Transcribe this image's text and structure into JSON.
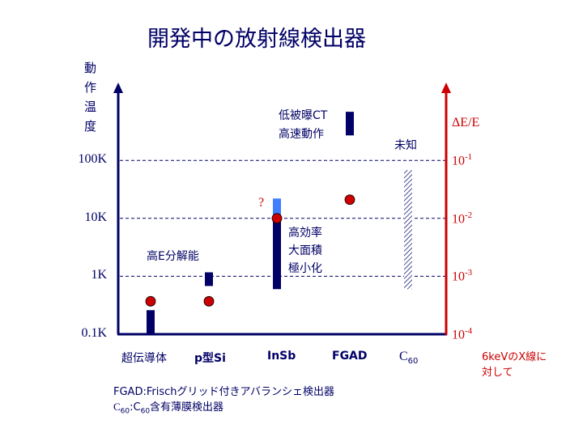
{
  "title": "開発中の放射線検出器",
  "left_axis_label": "動\n作\n温\n度",
  "right_axis_label": "ΔE/E",
  "right_axis_note": [
    "6keVのX線に",
    "対して"
  ],
  "annotations": {
    "fgad_note": [
      "低被曝CT",
      "高速動作"
    ],
    "insb_note": [
      "高効率",
      "大面積",
      "極小化"
    ],
    "high_res": "高E分解能",
    "unknown": "未知",
    "question": "?"
  },
  "footnotes": {
    "fgad": "FGAD:Frischグリッド付きアバランシェ検出器",
    "c60_prefix": "C",
    "c60_sub": "60",
    "c60_mid": ":C",
    "c60_sub2": "60",
    "c60_rest": "含有薄膜検出器"
  },
  "colors": {
    "navy": "#000066",
    "red": "#cc0000",
    "light_blue": "#3f7fff",
    "dot": "#cc0000"
  },
  "chart_data": {
    "type": "range-bar+scatter",
    "title": "開発中の放射線検出器",
    "categories": [
      "超伝導体",
      "p型Si",
      "InSb",
      "FGAD",
      "C60"
    ],
    "left_axis": {
      "label": "動作温度",
      "scale": "log",
      "ticks": [
        "0.1K",
        "1K",
        "10K",
        "100K"
      ],
      "range_K": [
        0.1,
        1000
      ]
    },
    "right_axis": {
      "label": "ΔE/E",
      "scale": "log",
      "ticks": [
        {
          "base": "10",
          "exp": "-4"
        },
        {
          "base": "10",
          "exp": "-3"
        },
        {
          "base": "10",
          "exp": "-2"
        },
        {
          "base": "10",
          "exp": "-1"
        }
      ],
      "range": [
        0.0001,
        1
      ]
    },
    "grid": "dashed at 1K, 10K, 100K",
    "temperature_ranges_K": [
      {
        "category": "超伝導体",
        "low": 0.1,
        "high": 0.26,
        "style": "solid"
      },
      {
        "category": "p型Si",
        "low": 0.68,
        "high": 1.17,
        "style": "solid"
      },
      {
        "category": "InSb",
        "low": 0.6,
        "high": 10,
        "style": "solid"
      },
      {
        "category": "InSb",
        "low": 10,
        "high": 22,
        "style": "light"
      },
      {
        "category": "FGAD",
        "low": 270,
        "high": 690,
        "style": "solid"
      },
      {
        "category": "C60",
        "low": 0.6,
        "high": 68,
        "style": "hatched"
      }
    ],
    "resolution_dE_E": [
      {
        "category": "超伝導体",
        "value": 0.00037
      },
      {
        "category": "p型Si",
        "value": 0.00037
      },
      {
        "category": "InSb",
        "value": 0.01
      },
      {
        "category": "FGAD",
        "value": 0.021
      }
    ]
  }
}
